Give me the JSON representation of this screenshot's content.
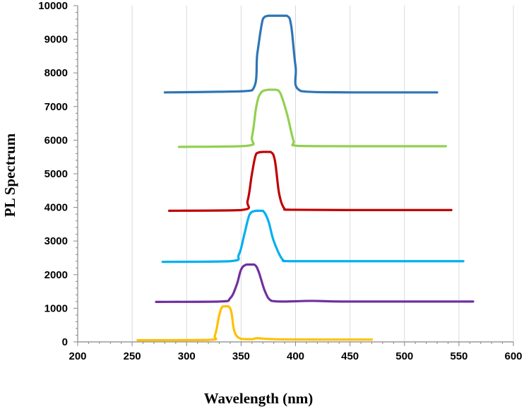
{
  "chart_data": {
    "type": "line",
    "title": "",
    "xlabel": "Wavelength (nm)",
    "ylabel": "PL Spectrum",
    "xlim": [
      200,
      600
    ],
    "ylim": [
      0,
      10000
    ],
    "x_ticks": [
      200,
      250,
      300,
      350,
      400,
      450,
      500,
      550,
      600
    ],
    "y_ticks": [
      0,
      1000,
      2000,
      3000,
      4000,
      5000,
      6000,
      7000,
      8000,
      9000,
      10000
    ],
    "x_tick_labels": [
      "200",
      "250",
      "300",
      "350",
      "400",
      "450",
      "500",
      "550",
      "600"
    ],
    "y_tick_labels": [
      "0",
      "1000",
      "2000",
      "3000",
      "4000",
      "5000",
      "6000",
      "7000",
      "8000",
      "9000",
      "10000"
    ],
    "grid": "vertical",
    "legend": "none",
    "series": [
      {
        "name": "orange",
        "color": "#ffc000",
        "x": [
          255,
          320,
          326,
          330,
          333,
          338,
          341,
          344,
          350,
          360,
          365,
          380,
          420,
          470
        ],
        "y": [
          50,
          60,
          200,
          800,
          1050,
          1060,
          900,
          300,
          90,
          80,
          110,
          80,
          70,
          70
        ]
      },
      {
        "name": "purple",
        "color": "#7030a0",
        "x": [
          272,
          330,
          340,
          346,
          350,
          355,
          362,
          366,
          372,
          378,
          390,
          415,
          450,
          563
        ],
        "y": [
          1190,
          1200,
          1300,
          1700,
          2150,
          2300,
          2300,
          2100,
          1500,
          1220,
          1200,
          1220,
          1200,
          1200
        ]
      },
      {
        "name": "sky-blue",
        "color": "#00b0f0",
        "x": [
          278,
          340,
          348,
          353,
          358,
          364,
          370,
          375,
          380,
          388,
          395,
          450,
          554
        ],
        "y": [
          2380,
          2400,
          2600,
          3200,
          3800,
          3900,
          3900,
          3600,
          3000,
          2450,
          2400,
          2400,
          2400
        ]
      },
      {
        "name": "dark-red",
        "color": "#c00000",
        "x": [
          284,
          350,
          356,
          360,
          364,
          370,
          377,
          381,
          385,
          390,
          396,
          450,
          543
        ],
        "y": [
          3900,
          3920,
          4200,
          5000,
          5600,
          5650,
          5650,
          5400,
          4400,
          3950,
          3930,
          3920,
          3920
        ]
      },
      {
        "name": "light-green",
        "color": "#92d050",
        "x": [
          293,
          355,
          360,
          364,
          368,
          375,
          382,
          386,
          392,
          398,
          402,
          450,
          538
        ],
        "y": [
          5800,
          5830,
          6100,
          7000,
          7400,
          7500,
          7500,
          7400,
          6800,
          6000,
          5830,
          5820,
          5820
        ]
      },
      {
        "name": "blue",
        "color": "#2e75b6",
        "x": [
          280,
          330,
          360,
          365,
          370,
          375,
          382,
          392,
          396,
          400,
          405,
          450,
          530
        ],
        "y": [
          7420,
          7440,
          7480,
          8600,
          9600,
          9700,
          9700,
          9700,
          9400,
          8200,
          7460,
          7420,
          7420
        ]
      }
    ]
  }
}
